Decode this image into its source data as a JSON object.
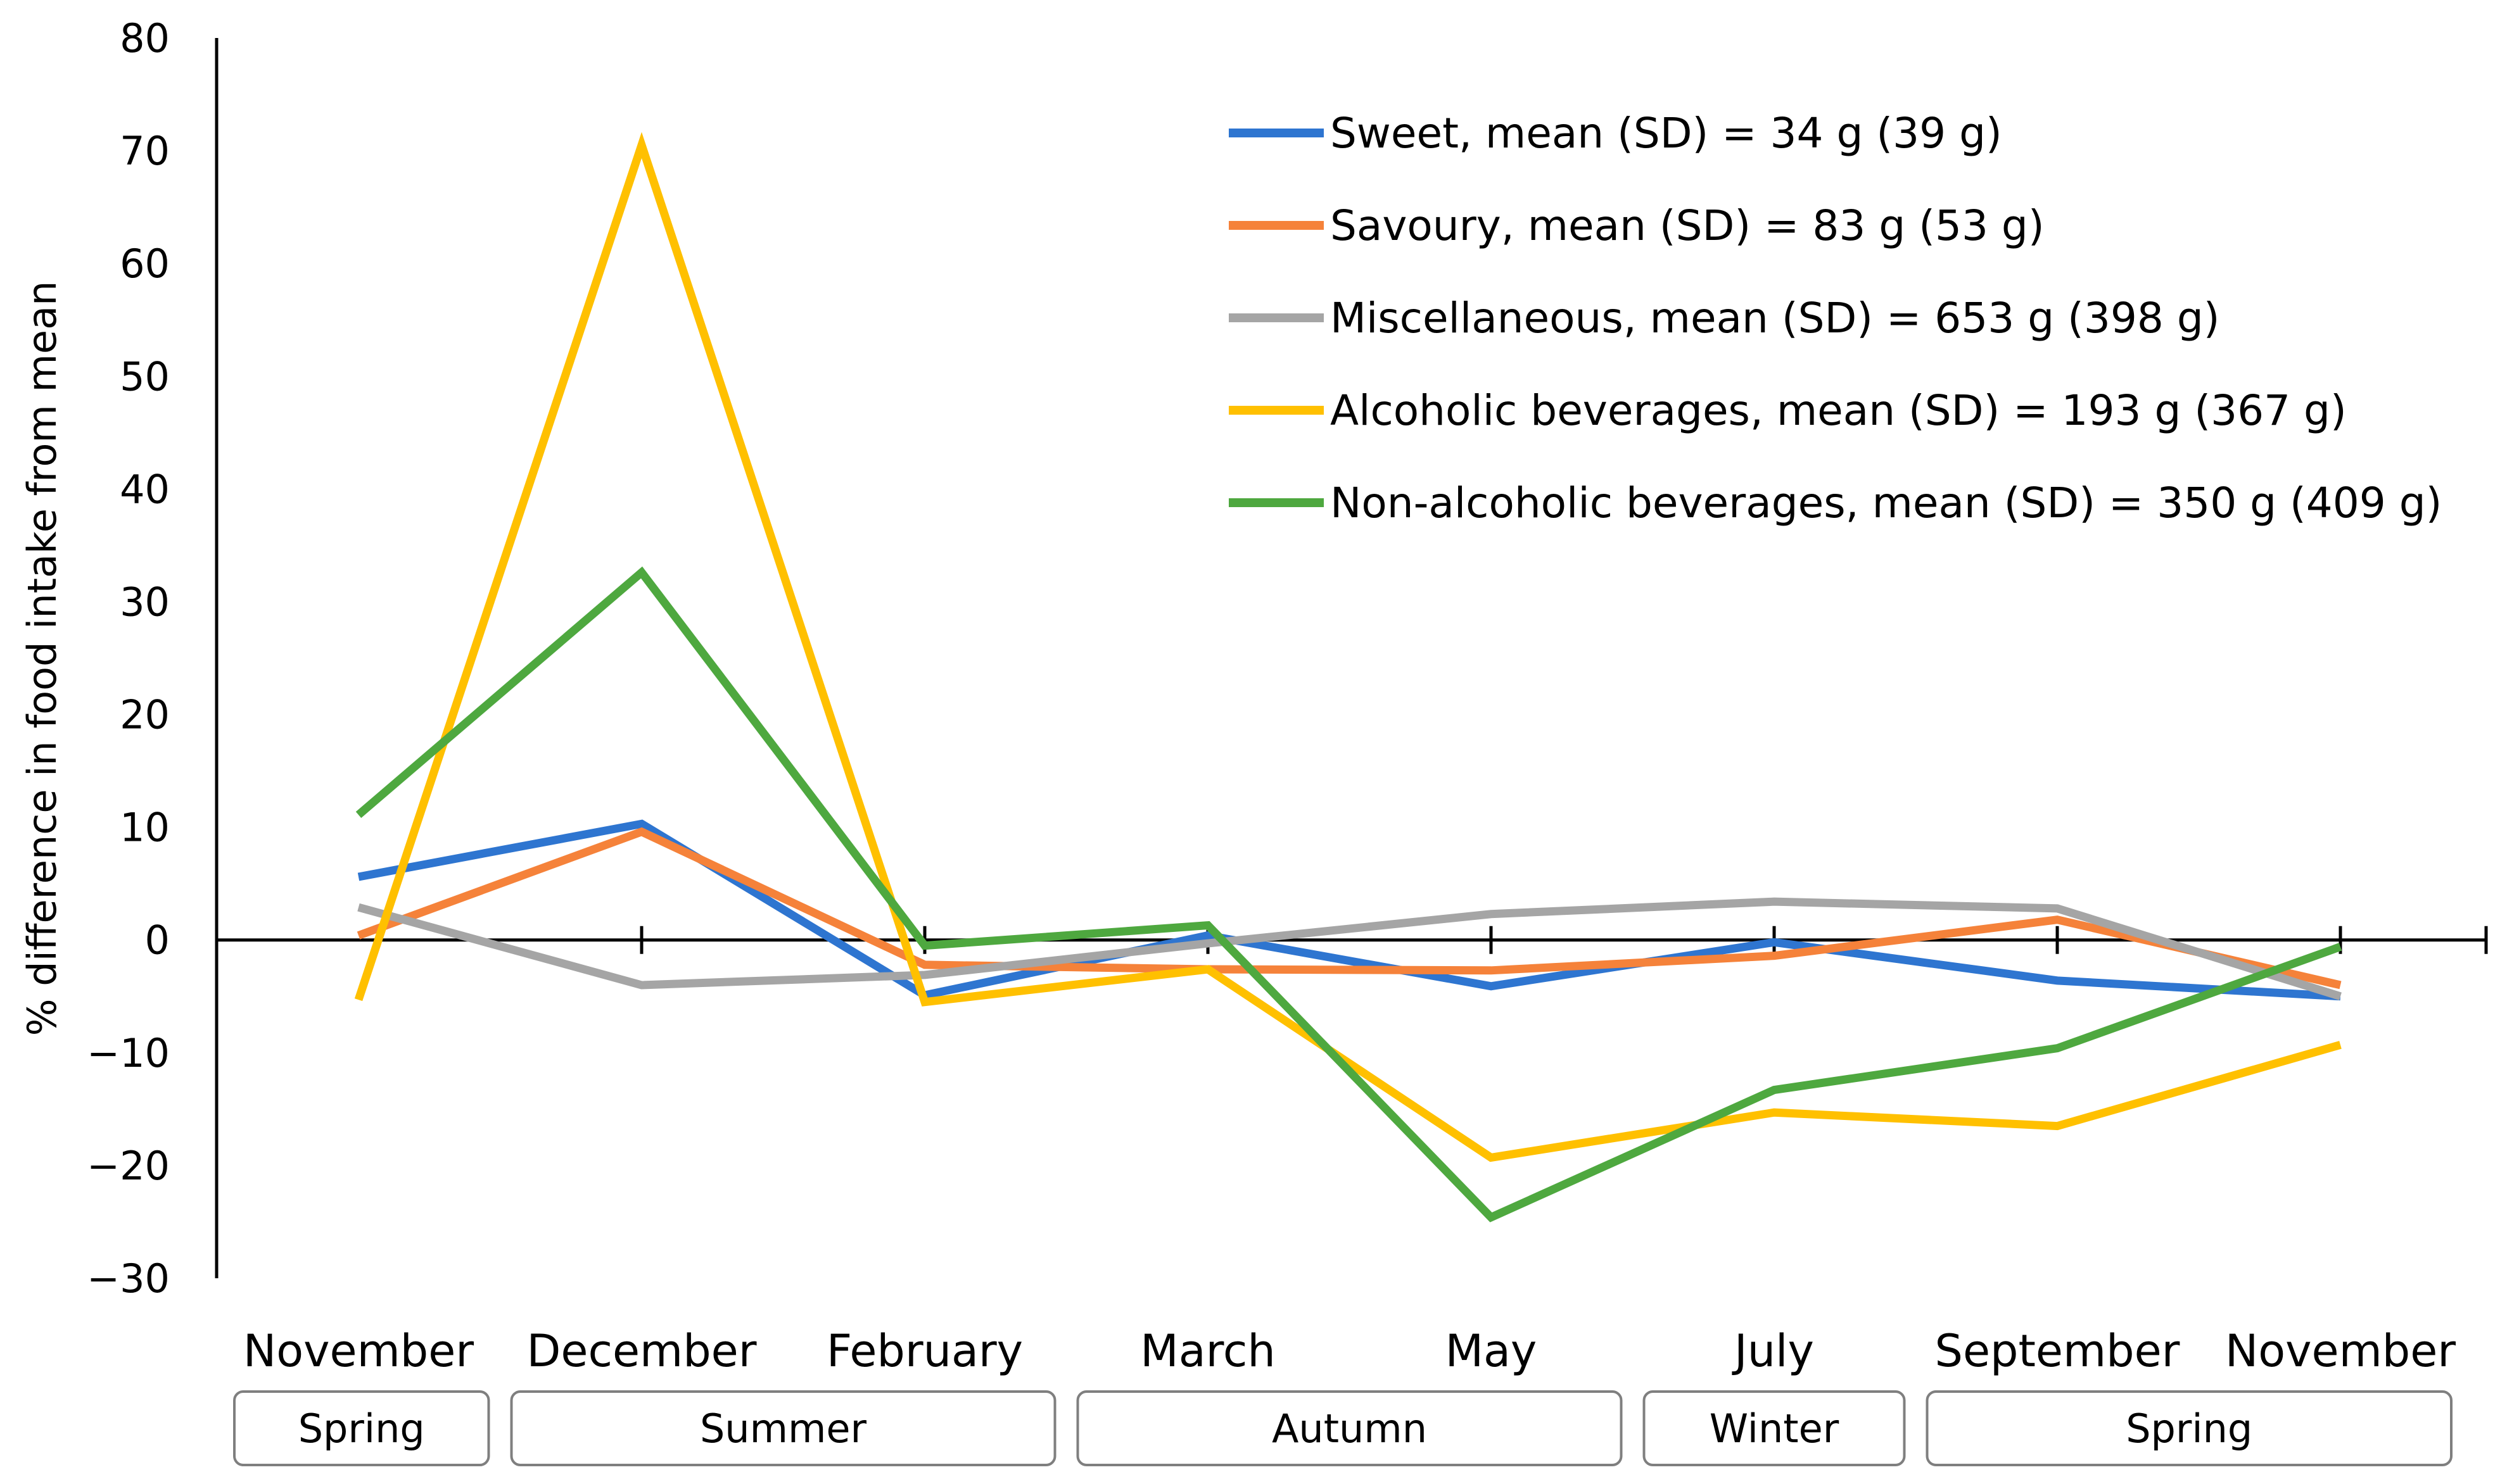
{
  "chart_data": {
    "type": "line",
    "title": "",
    "xlabel": "",
    "ylabel": "% difference in food intake from mean",
    "ylim": [
      -30,
      80
    ],
    "yticks": [
      80,
      70,
      60,
      50,
      40,
      30,
      20,
      10,
      0,
      -10,
      -20,
      -30
    ],
    "ytick_labels": [
      "80",
      "70",
      "60",
      "50",
      "40",
      "30",
      "20",
      "10",
      "0",
      "−10",
      "−20",
      "−30"
    ],
    "categories": [
      "November",
      "December",
      "February",
      "March",
      "May",
      "July",
      "September",
      "November"
    ],
    "seasons": [
      {
        "label": "Spring",
        "from": 0,
        "to": 0
      },
      {
        "label": "Summer",
        "from": 1,
        "to": 2
      },
      {
        "label": "Autumn",
        "from": 3,
        "to": 4
      },
      {
        "label": "Winter",
        "from": 5,
        "to": 5
      },
      {
        "label": "Spring",
        "from": 6,
        "to": 7
      }
    ],
    "legend_position": "top-right",
    "series": [
      {
        "name": "Sweet, mean (SD) = 34 g (39 g)",
        "color": "#2E75D0",
        "values": [
          5.6,
          10.3,
          -4.9,
          0.4,
          -4.1,
          -0.2,
          -3.6,
          -5.0
        ]
      },
      {
        "name": "Savoury, mean (SD) = 83 g (53 g)",
        "color": "#F5823A",
        "values": [
          0.4,
          9.6,
          -2.2,
          -2.6,
          -2.7,
          -1.4,
          1.8,
          -4.0
        ]
      },
      {
        "name": "Miscellaneous, mean (SD) = 653 g (398 g)",
        "color": "#A5A5A5",
        "values": [
          2.9,
          -4.0,
          -3.1,
          -0.3,
          2.3,
          3.4,
          2.8,
          -5.0
        ]
      },
      {
        "name": "Alcoholic beverages, mean (SD) = 193 g (367 g)",
        "color": "#FFC000",
        "values": [
          -5.3,
          70.5,
          -5.5,
          -2.6,
          -19.3,
          -15.3,
          -16.5,
          -9.3
        ]
      },
      {
        "name": "Non-alcoholic beverages, mean (SD) = 350 g (409 g)",
        "color": "#4EA83F",
        "values": [
          11.1,
          32.6,
          -0.5,
          1.3,
          -24.6,
          -13.3,
          -9.6,
          -0.6
        ]
      }
    ]
  }
}
